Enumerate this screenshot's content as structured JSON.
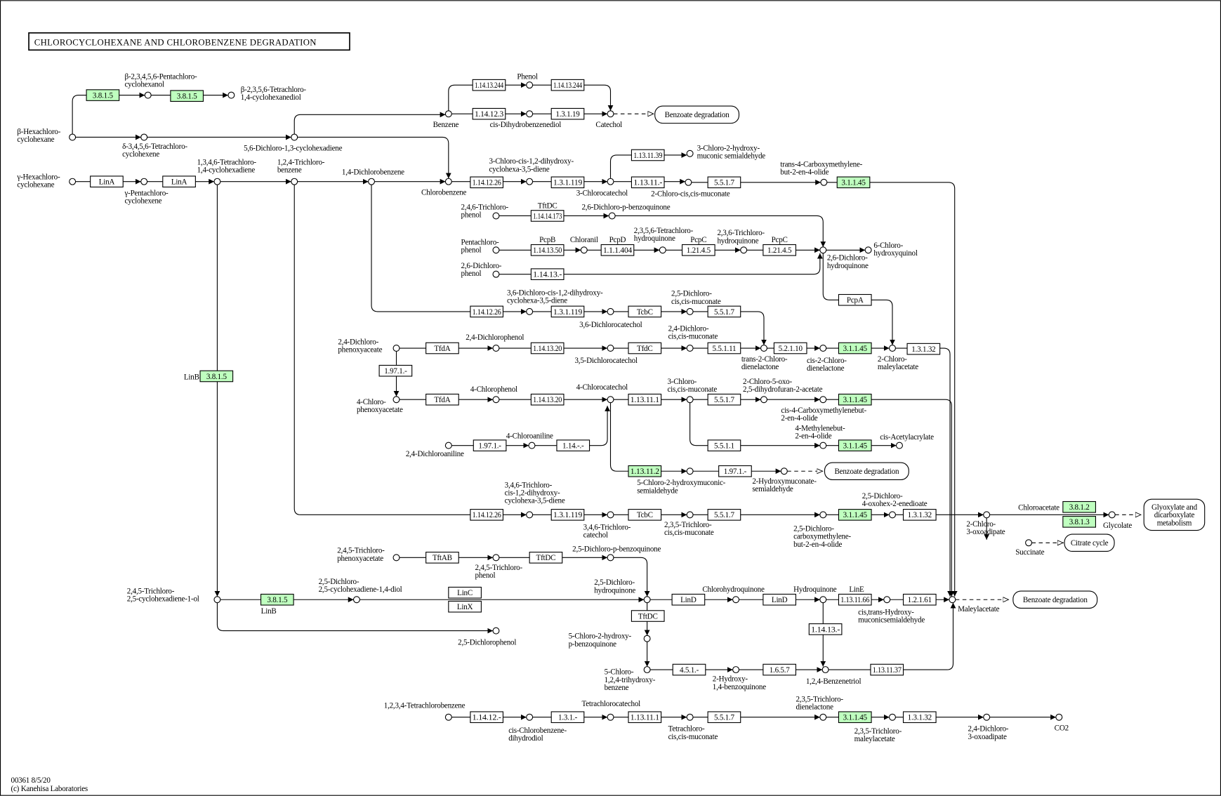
{
  "title": "CHLOROCYCLOHEXANE AND CHLOROBENZENE DEGRADATION",
  "footer": [
    "00361 8/5/20",
    "(c) Kanehisa Laboratories"
  ],
  "colors": {
    "highlighted_enzyme": "#bfffbf",
    "default_enzyme": "#ffffff",
    "line": "#000000"
  },
  "enzymes": [
    {
      "label": "3.8.1.5",
      "highlighted": true
    },
    {
      "label": "3.8.1.5",
      "highlighted": true
    },
    {
      "label": "1.14.13.244",
      "highlighted": false
    },
    {
      "label": "1.14.13.244",
      "highlighted": false
    },
    {
      "label": "1.14.12.3",
      "highlighted": false
    },
    {
      "label": "1.3.1.19",
      "highlighted": false
    },
    {
      "label": "LinA",
      "highlighted": false
    },
    {
      "label": "LinA",
      "highlighted": false
    },
    {
      "label": "1.14.12.26",
      "highlighted": false
    },
    {
      "label": "1.3.1.119",
      "highlighted": false
    },
    {
      "label": "1.13.11.-",
      "highlighted": false
    },
    {
      "label": "5.5.1.7",
      "highlighted": false
    },
    {
      "label": "3.1.1.45",
      "highlighted": true
    },
    {
      "label": "1.13.11.39",
      "highlighted": false
    },
    {
      "label": "1.14.14.173",
      "highlighted": false
    },
    {
      "label": "1.14.13.50",
      "highlighted": false
    },
    {
      "label": "1.1.1.404",
      "highlighted": false
    },
    {
      "label": "1.21.4.5",
      "highlighted": false
    },
    {
      "label": "1.21.4.5",
      "highlighted": false
    },
    {
      "label": "1.14.13.-",
      "highlighted": false
    },
    {
      "label": "PcpA",
      "highlighted": false
    },
    {
      "label": "1.14.12.26",
      "highlighted": false
    },
    {
      "label": "1.3.1.119",
      "highlighted": false
    },
    {
      "label": "TcbC",
      "highlighted": false
    },
    {
      "label": "5.5.1.7",
      "highlighted": false
    },
    {
      "label": "TfdA",
      "highlighted": false
    },
    {
      "label": "1.14.13.20",
      "highlighted": false
    },
    {
      "label": "TfdC",
      "highlighted": false
    },
    {
      "label": "5.5.1.11",
      "highlighted": false
    },
    {
      "label": "5.2.1.10",
      "highlighted": false
    },
    {
      "label": "3.1.1.45",
      "highlighted": true
    },
    {
      "label": "1.3.1.32",
      "highlighted": false
    },
    {
      "label": "1.97.1.-",
      "highlighted": false
    },
    {
      "label": "TfdA",
      "highlighted": false
    },
    {
      "label": "1.14.13.20",
      "highlighted": false
    },
    {
      "label": "1.13.11.1",
      "highlighted": false
    },
    {
      "label": "5.5.1.7",
      "highlighted": false
    },
    {
      "label": "3.1.1.45",
      "highlighted": true
    },
    {
      "label": "1.97.1.-",
      "highlighted": false
    },
    {
      "label": "1.14.-.-",
      "highlighted": false
    },
    {
      "label": "5.5.1.1",
      "highlighted": false
    },
    {
      "label": "3.1.1.45",
      "highlighted": true
    },
    {
      "label": "1.13.11.2",
      "highlighted": true
    },
    {
      "label": "1.97.1.-",
      "highlighted": false
    },
    {
      "label": "3.8.1.5",
      "highlighted": true
    },
    {
      "label": "1.14.12.26",
      "highlighted": false
    },
    {
      "label": "1.3.1.119",
      "highlighted": false
    },
    {
      "label": "TcbC",
      "highlighted": false
    },
    {
      "label": "5.5.1.7",
      "highlighted": false
    },
    {
      "label": "3.1.1.45",
      "highlighted": true
    },
    {
      "label": "1.3.1.32",
      "highlighted": false
    },
    {
      "label": "3.8.1.2",
      "highlighted": true
    },
    {
      "label": "3.8.1.3",
      "highlighted": true
    },
    {
      "label": "TftAB",
      "highlighted": false
    },
    {
      "label": "TftDC",
      "highlighted": false
    },
    {
      "label": "LinC",
      "highlighted": false
    },
    {
      "label": "LinX",
      "highlighted": false
    },
    {
      "label": "3.8.1.5",
      "highlighted": true
    },
    {
      "label": "LinD",
      "highlighted": false
    },
    {
      "label": "LinD",
      "highlighted": false
    },
    {
      "label": "1.13.11.66",
      "highlighted": false
    },
    {
      "label": "1.2.1.61",
      "highlighted": false
    },
    {
      "label": "TftDC",
      "highlighted": false
    },
    {
      "label": "1.14.13.-",
      "highlighted": false
    },
    {
      "label": "4.5.1.-",
      "highlighted": false
    },
    {
      "label": "1.6.5.7",
      "highlighted": false
    },
    {
      "label": "1.13.11.37",
      "highlighted": false
    },
    {
      "label": "1.14.12.-",
      "highlighted": false
    },
    {
      "label": "1.3.1.-",
      "highlighted": false
    },
    {
      "label": "1.13.11.1",
      "highlighted": false
    },
    {
      "label": "5.5.1.7",
      "highlighted": false
    },
    {
      "label": "3.1.1.45",
      "highlighted": true
    },
    {
      "label": "1.3.1.32",
      "highlighted": false
    }
  ],
  "gene_labels": [
    "TftDC",
    "PcpB",
    "Chloranil",
    "PcpD",
    "PcpC",
    "PcpC",
    "LinB",
    "LinB",
    "LinE",
    "Chloroacetate",
    "Glycolate"
  ],
  "maps": [
    {
      "lines": [
        "Benzoate degradation"
      ]
    },
    {
      "lines": [
        "Benzoate degradation"
      ]
    },
    {
      "lines": [
        "Benzoate degradation"
      ]
    },
    {
      "lines": [
        "Citrate cycle"
      ]
    },
    {
      "lines": [
        "Glyoxylate and",
        "dicarboxylate",
        "metabolism"
      ]
    }
  ],
  "compounds": [
    {
      "lines": [
        "β-Hexachloro-",
        "cyclohexane"
      ]
    },
    {
      "lines": [
        "β-2,3,4,5,6-Pentachloro-",
        "cyclohexanol"
      ]
    },
    {
      "lines": [
        "β-2,3,5,6-Tetrachloro-",
        "1,4-cyclohexanediol"
      ]
    },
    {
      "lines": [
        "δ-3,4,5,6-Tetrachloro-",
        "cyclohexene"
      ]
    },
    {
      "lines": [
        "5,6-Dichloro-1,3-cyclohexadiene"
      ]
    },
    {
      "lines": [
        "γ-Hexachloro-",
        "cyclohexane"
      ]
    },
    {
      "lines": [
        "γ-Pentachloro-",
        "cyclohexene"
      ]
    },
    {
      "lines": [
        "1,3,4,6-Tetrachloro-",
        "1,4-cyclohexadiene"
      ]
    },
    {
      "lines": [
        "1,2,4-Trichloro-",
        "benzene"
      ]
    },
    {
      "lines": [
        "1,4-Dichlorobenzene"
      ]
    },
    {
      "lines": [
        "Benzene"
      ]
    },
    {
      "lines": [
        "Phenol"
      ]
    },
    {
      "lines": [
        "cis-Dihydrobenzenediol"
      ]
    },
    {
      "lines": [
        "Catechol"
      ]
    },
    {
      "lines": [
        "Chlorobenzene"
      ]
    },
    {
      "lines": [
        "3-Chloro-cis-1,2-dihydroxy-",
        "cyclohexa-3,5-diene"
      ]
    },
    {
      "lines": [
        "3-Chlorocatechol"
      ]
    },
    {
      "lines": [
        "3-Chloro-2-hydroxy-",
        "muconic semialdehyde"
      ]
    },
    {
      "lines": [
        "2-Chloro-cis,cis-muconate"
      ]
    },
    {
      "lines": [
        "trans-4-Carboxymethylene-",
        "but-2-en-4-olide"
      ]
    },
    {
      "lines": [
        "2,4,6-Trichloro-",
        "phenol"
      ]
    },
    {
      "lines": [
        "2,6-Dichloro-p-benzoquinone"
      ]
    },
    {
      "lines": [
        "Pentachloro-",
        "phenol"
      ]
    },
    {
      "lines": []
    },
    {
      "lines": [
        "2,3,5,6-Tetrachloro-",
        "hydroquinone"
      ]
    },
    {
      "lines": [
        "2,3,6-Trichloro-",
        "hydroquinone"
      ]
    },
    {
      "lines": [
        "2,6-Dichloro-",
        "hydroquinone"
      ]
    },
    {
      "lines": [
        "6-Chloro-",
        "hydroxyquinol"
      ]
    },
    {
      "lines": [
        "2,6-Dichloro-",
        "phenol"
      ]
    },
    {
      "lines": [
        "3,6-Dichloro-cis-1,2-dihydroxy-",
        "cyclohexa-3,5-diene"
      ]
    },
    {
      "lines": [
        "3,6-Dichlorocatechol"
      ]
    },
    {
      "lines": [
        "2,5-Dichloro-",
        "cis,cis-muconate"
      ]
    },
    {
      "lines": [
        "2,4-Dichloro-",
        "phenoxyaceate"
      ]
    },
    {
      "lines": [
        "2,4-Dichlorophenol"
      ]
    },
    {
      "lines": [
        "3,5-Dichlorocatechol"
      ]
    },
    {
      "lines": [
        "2,4-Dichloro-",
        "cis,cis-muconate"
      ]
    },
    {
      "lines": [
        "trans-2-Chloro-",
        "dienelactone"
      ]
    },
    {
      "lines": [
        "cis-2-Chloro-",
        "dienelactone"
      ]
    },
    {
      "lines": [
        "2-Chloro-",
        "maleylacetate"
      ]
    },
    {
      "lines": [
        "4-Chloro-",
        "phenoxyacetate"
      ]
    },
    {
      "lines": [
        "4-Chlorophenol"
      ]
    },
    {
      "lines": [
        "4-Chlorocatechol"
      ]
    },
    {
      "lines": [
        "3-Chloro-",
        "cis,cis-muconate"
      ]
    },
    {
      "lines": [
        "2-Chloro-5-oxo-",
        "2,5-dihydrofuran-2-acetate"
      ]
    },
    {
      "lines": [
        "cis-4-Carboxymethylenebut-",
        "2-en-4-olide"
      ]
    },
    {
      "lines": [
        "2,4-Dichloroaniline"
      ]
    },
    {
      "lines": [
        "4-Chloroaniline"
      ]
    },
    {
      "lines": [
        "4-Methylenebut-",
        "2-en-4-olide"
      ]
    },
    {
      "lines": [
        "cis-Acetylacrylate"
      ]
    },
    {
      "lines": [
        "5-Chloro-2-hydroxymuconic-",
        "semialdehyde"
      ]
    },
    {
      "lines": [
        "2-Hydroxymuconate-",
        "semialdehyde"
      ]
    },
    {
      "lines": [
        "3,4,6-Trichloro-",
        "cis-1,2-dihydroxy-",
        "cyclohexa-3,5-diene"
      ]
    },
    {
      "lines": [
        "3,4,6-Trichloro-",
        "catechol"
      ]
    },
    {
      "lines": [
        "2,3,5-Trichloro-",
        "cis,cis-muconate"
      ]
    },
    {
      "lines": [
        "2,5-Dichloro-",
        "carboxymethylene-",
        "but-2-en-4-olide"
      ]
    },
    {
      "lines": [
        "2,5-Dichloro-",
        "4-oxohex-2-enedioate"
      ]
    },
    {
      "lines": [
        "2-Chloro-",
        "3-oxoadipate"
      ]
    },
    {
      "lines": []
    },
    {
      "lines": [
        "Succinate"
      ]
    },
    {
      "lines": [
        "2,4,5-Trichloro-",
        "phenoxyacetate"
      ]
    },
    {
      "lines": [
        "2,4,5-Trichloro-",
        "phenol"
      ]
    },
    {
      "lines": [
        "2,5-Dichloro-p-benzoquinone"
      ]
    },
    {
      "lines": [
        "2,4,5-Trichloro-",
        "2,5-cyclohexadiene-1-ol"
      ]
    },
    {
      "lines": [
        "2,5-Dichloro-",
        "2,5-cyclohexadiene-1,4-diol"
      ]
    },
    {
      "lines": [
        "2,5-Dichloro-",
        "hydroquinone"
      ]
    },
    {
      "lines": [
        "Chlorohydroquinone"
      ]
    },
    {
      "lines": [
        "Hydroquinone"
      ]
    },
    {
      "lines": [
        "cis,trans-Hydroxy-",
        "muconicsemialdehyde"
      ]
    },
    {
      "lines": [
        "Maleylacetate"
      ]
    },
    {
      "lines": [
        "2,5-Dichlorophenol"
      ]
    },
    {
      "lines": [
        "5-Chloro-2-hydroxy-",
        "p-benzoquinone"
      ]
    },
    {
      "lines": [
        "5-Chloro-",
        "1,2,4-trihydroxy-",
        "benzene"
      ]
    },
    {
      "lines": [
        "2-Hydroxy-",
        "1,4-benzoquinone"
      ]
    },
    {
      "lines": [
        "1,2,4-Benzenetriol"
      ]
    },
    {
      "lines": [
        "1,2,3,4-Tetrachlorobenzene"
      ]
    },
    {
      "lines": [
        "cis-Chlorobenzene-",
        "dihydrodiol"
      ]
    },
    {
      "lines": [
        "Tetrachlorocatechol"
      ]
    },
    {
      "lines": [
        "Tetrachloro-",
        "cis,cis-muconate"
      ]
    },
    {
      "lines": [
        "2,3,5-Trichloro-",
        "dienelactone"
      ]
    },
    {
      "lines": [
        "2,3,5-Trichloro-",
        "maleylacetate"
      ]
    },
    {
      "lines": [
        "2,4-Dichloro-",
        "3-oxoadipate"
      ]
    },
    {
      "lines": [
        "CO2"
      ]
    }
  ]
}
